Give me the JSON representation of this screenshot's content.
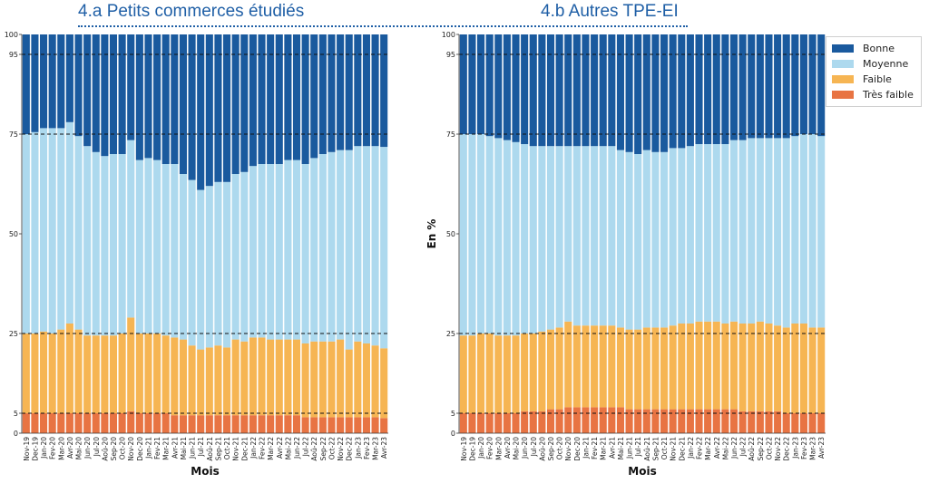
{
  "titles": {
    "left": "4.a Petits commerces étudiés",
    "right": "4.b Autres TPE-EI"
  },
  "legend": [
    {
      "label": "Bonne",
      "color": "#1a5a9e"
    },
    {
      "label": "Moyenne",
      "color": "#add9ee"
    },
    {
      "label": "Faible",
      "color": "#f6b553"
    },
    {
      "label": "Très faible",
      "color": "#e87443"
    }
  ],
  "chart_data": [
    {
      "type": "bar",
      "stacked": true,
      "title": "4.a Petits commerces étudiés",
      "xlabel": "Mois",
      "ylabel": "",
      "ylim": [
        0,
        100
      ],
      "yticks": [
        0,
        5,
        25,
        50,
        75,
        95,
        100
      ],
      "reference_lines": [
        5,
        25,
        75,
        95
      ],
      "categories": [
        "Nov-19",
        "Dec-19",
        "Jan-20",
        "Fev-20",
        "Mar-20",
        "Avr-20",
        "Mai-20",
        "Jun-20",
        "Jul-20",
        "Aoû-20",
        "Sep-20",
        "Oct-20",
        "Nov-20",
        "Dec-20",
        "Jan-21",
        "Fev-21",
        "Mar-21",
        "Avr-21",
        "Mai-21",
        "Jun-21",
        "Jul-21",
        "Aoû-21",
        "Sep-21",
        "Oct-21",
        "Nov-21",
        "Dec-21",
        "Jan-22",
        "Fev-22",
        "Mar-22",
        "Avr-22",
        "Mai-22",
        "Jun-22",
        "Jul-22",
        "Aoû-22",
        "Sep-22",
        "Oct-22",
        "Nov-22",
        "Dec-22",
        "Jan-23",
        "Fev-23",
        "Mar-23",
        "Avr-23"
      ],
      "series": [
        {
          "name": "Très faible",
          "values": [
            5,
            5,
            5,
            5,
            5,
            5,
            5,
            5,
            5,
            5,
            5,
            5,
            5.5,
            5,
            5,
            5,
            5,
            4.5,
            4.5,
            4.5,
            4.5,
            4.5,
            4.5,
            4.5,
            4.5,
            4.5,
            4.5,
            4.5,
            4.5,
            4.5,
            4.5,
            4.5,
            4,
            4,
            4,
            4,
            4,
            4,
            4,
            4,
            4,
            3.8
          ]
        },
        {
          "name": "Faible",
          "values": [
            20,
            20,
            20.5,
            20,
            21,
            22.5,
            21,
            19.5,
            19.5,
            19.5,
            19.5,
            20,
            23.5,
            20,
            20,
            20,
            19.5,
            19.5,
            19,
            17.5,
            16.5,
            17,
            17.5,
            17,
            19,
            18.5,
            19.5,
            19.5,
            19,
            19,
            19,
            19,
            18.5,
            19,
            19,
            19,
            19.5,
            17,
            19,
            18.5,
            18,
            17.5
          ]
        },
        {
          "name": "Moyenne",
          "values": [
            50,
            50.5,
            51,
            51.5,
            50.5,
            50.5,
            48.5,
            47.5,
            46,
            45,
            45.5,
            45,
            44.5,
            43.5,
            44,
            43.5,
            43,
            43.5,
            41.5,
            41.5,
            40,
            40.5,
            41,
            41.5,
            41.5,
            42.5,
            43,
            43.5,
            44,
            44,
            45,
            45,
            45,
            46,
            47,
            47.5,
            47.5,
            50,
            49,
            49.5,
            50,
            50.5
          ]
        },
        {
          "name": "Bonne",
          "values": [
            25,
            24.5,
            23.5,
            23.5,
            23.5,
            22,
            25.5,
            28,
            29.5,
            30.5,
            30,
            30,
            26.5,
            31.5,
            31,
            31.5,
            32.5,
            32.5,
            35,
            36.5,
            39,
            38,
            37,
            37,
            35,
            34.5,
            33,
            32.5,
            32.5,
            32.5,
            31.5,
            31.5,
            32.5,
            31,
            30,
            29.5,
            29,
            29,
            28,
            28,
            28,
            28.2
          ]
        }
      ]
    },
    {
      "type": "bar",
      "stacked": true,
      "title": "4.b Autres TPE-EI",
      "xlabel": "Mois",
      "ylabel": "En %",
      "ylim": [
        0,
        100
      ],
      "yticks": [
        0,
        5,
        25,
        50,
        75,
        95,
        100
      ],
      "reference_lines": [
        5,
        25,
        75,
        95
      ],
      "categories": [
        "Nov-19",
        "Dec-19",
        "Jan-20",
        "Fev-20",
        "Mar-20",
        "Avr-20",
        "Mai-20",
        "Jun-20",
        "Jul-20",
        "Aoû-20",
        "Sep-20",
        "Oct-20",
        "Nov-20",
        "Dec-20",
        "Jan-21",
        "Fev-21",
        "Mar-21",
        "Avr-21",
        "Mai-21",
        "Jun-21",
        "Jul-21",
        "Aoû-21",
        "Sep-21",
        "Oct-21",
        "Nov-21",
        "Dec-21",
        "Jan-22",
        "Fev-22",
        "Mar-22",
        "Avr-22",
        "Mai-22",
        "Jun-22",
        "Jul-22",
        "Aoû-22",
        "Sep-22",
        "Oct-22",
        "Nov-22",
        "Dec-22",
        "Jan-23",
        "Fev-23",
        "Mar-23",
        "Avr-23"
      ],
      "series": [
        {
          "name": "Très faible",
          "values": [
            5,
            5,
            5,
            5,
            5,
            5,
            5,
            5.5,
            5.5,
            5.5,
            6,
            6,
            6.5,
            6.5,
            6.5,
            6.5,
            6.5,
            6.5,
            6.5,
            6,
            6,
            6,
            6,
            6,
            6,
            6,
            6,
            6,
            6,
            6,
            6,
            6,
            5.5,
            5.5,
            5.5,
            5.5,
            5.5,
            5,
            5,
            5,
            5,
            5
          ]
        },
        {
          "name": "Faible",
          "values": [
            19.5,
            19.5,
            20,
            20,
            19.5,
            19.5,
            19.5,
            19.5,
            19.5,
            20,
            20,
            20.5,
            21.5,
            20.5,
            20.5,
            20.5,
            20.5,
            20.5,
            20,
            20,
            20,
            20.5,
            20.5,
            20.5,
            21,
            21.5,
            21.5,
            22,
            22,
            22,
            21.5,
            22,
            22,
            22,
            22.5,
            22,
            21.5,
            21.5,
            22.5,
            22.5,
            21.5,
            21.5
          ]
        },
        {
          "name": "Moyenne",
          "values": [
            50.5,
            50.5,
            50,
            49.5,
            49.5,
            49,
            48.5,
            47.5,
            47,
            46.5,
            46,
            45.5,
            44,
            45,
            45,
            45,
            45,
            45,
            44.5,
            44.5,
            44,
            44.5,
            44,
            44,
            44.5,
            44,
            44.5,
            44.5,
            44.5,
            44.5,
            45,
            45.5,
            46,
            46.5,
            46,
            46.5,
            47,
            47.5,
            47,
            47.5,
            48.5,
            48
          ]
        },
        {
          "name": "Bonne",
          "values": [
            25,
            25,
            25,
            25.5,
            26,
            26.5,
            27,
            27.5,
            28,
            28,
            28,
            28,
            28,
            28,
            28,
            28,
            28,
            28,
            29,
            29.5,
            30,
            29,
            29.5,
            29.5,
            28.5,
            28.5,
            28,
            27.5,
            27.5,
            27.5,
            27.5,
            26.5,
            26.5,
            26,
            26,
            26,
            26,
            26,
            25.5,
            25,
            25,
            25.5
          ]
        }
      ]
    }
  ]
}
